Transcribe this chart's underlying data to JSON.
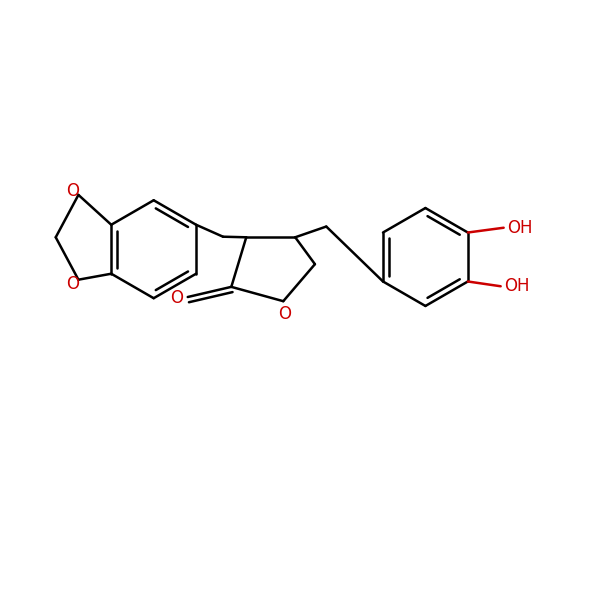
{
  "bg_color": "#ffffff",
  "bond_color": "#000000",
  "heteroatom_color": "#cc0000",
  "line_width": 1.8,
  "font_size": 12,
  "fig_width": 6.0,
  "fig_height": 6.0,
  "xlim": [
    0,
    10
  ],
  "ylim": [
    0,
    10
  ]
}
